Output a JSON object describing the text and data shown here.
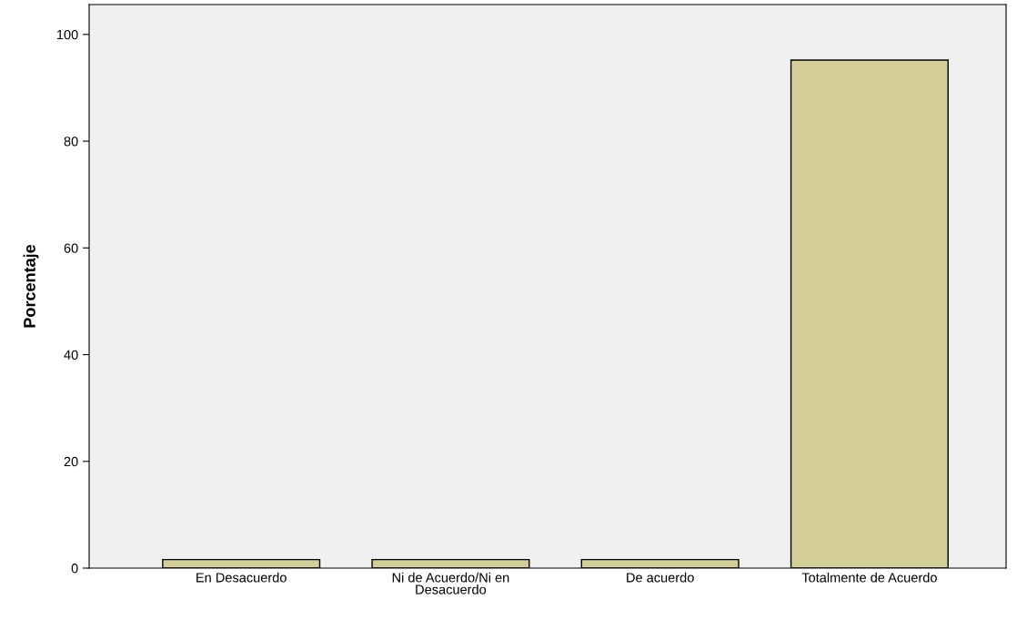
{
  "chart_data": {
    "type": "bar",
    "ylabel": "Porcentaje",
    "categories": [
      "En Desacuerdo",
      "Ni de Acuerdo/Ni en Desacuerdo",
      "De acuerdo",
      "Totalmente de Acuerdo"
    ],
    "values": [
      1.6,
      1.6,
      1.6,
      95.2
    ],
    "color": "#d3ce98",
    "ylim": [
      0,
      105.6
    ],
    "yticks": [
      0,
      20,
      40,
      60,
      80,
      100
    ],
    "grid": false
  }
}
